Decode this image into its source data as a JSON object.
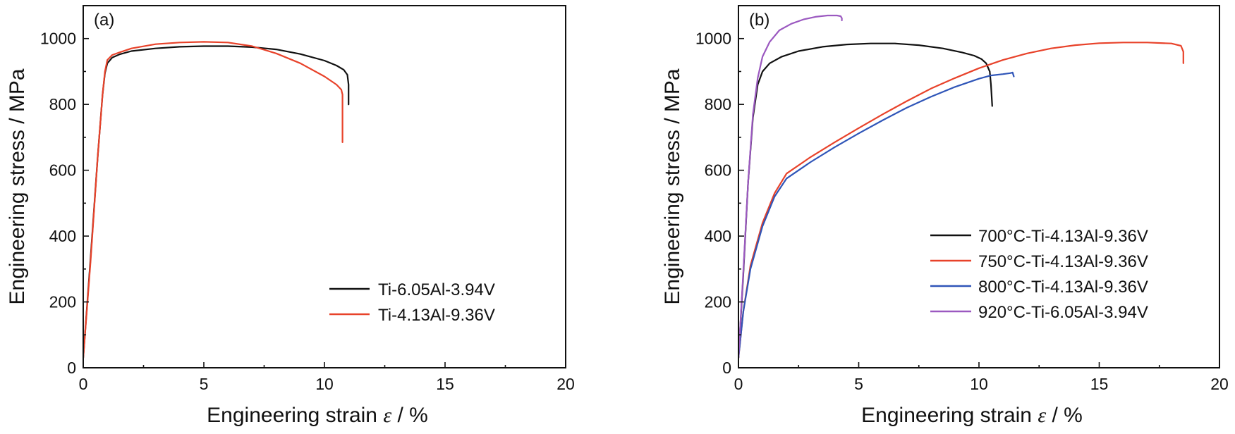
{
  "chart_data": [
    {
      "type": "line",
      "panel_label": "(a)",
      "xlabel_main": "Engineering strain ",
      "xlabel_symbol": "ε",
      "xlabel_unit": " / %",
      "ylabel": "Engineering stress / MPa",
      "xlim": [
        0,
        20
      ],
      "ylim": [
        0,
        1100
      ],
      "xticks": [
        0,
        5,
        10,
        15,
        20
      ],
      "yticks": [
        0,
        200,
        400,
        600,
        800,
        1000
      ],
      "xtick_labels": [
        "0",
        "5",
        "10",
        "15",
        "20"
      ],
      "ytick_labels": [
        "0",
        "200",
        "400",
        "600",
        "800",
        "1000"
      ],
      "legend_position": "lower-right",
      "series": [
        {
          "name": "Ti-6.05Al-3.94V",
          "color": "#111111",
          "x": [
            0,
            0.3,
            0.6,
            0.8,
            0.9,
            1.0,
            1.2,
            1.5,
            2.0,
            3.0,
            4.0,
            5.0,
            6.0,
            7.0,
            8.0,
            9.0,
            10.0,
            10.5,
            10.8,
            10.95,
            11.0,
            11.0
          ],
          "y": [
            30,
            330,
            640,
            830,
            895,
            925,
            942,
            952,
            962,
            970,
            975,
            977,
            977,
            974,
            967,
            953,
            933,
            918,
            905,
            890,
            860,
            800
          ]
        },
        {
          "name": "Ti-4.13Al-9.36V",
          "color": "#e8422a",
          "x": [
            0,
            0.3,
            0.6,
            0.8,
            0.9,
            1.0,
            1.2,
            1.5,
            2.0,
            3.0,
            4.0,
            5.0,
            6.0,
            7.0,
            8.0,
            9.0,
            10.0,
            10.5,
            10.7,
            10.75,
            10.75,
            10.75
          ],
          "y": [
            30,
            320,
            640,
            830,
            900,
            935,
            950,
            958,
            970,
            983,
            988,
            990,
            988,
            977,
            955,
            925,
            885,
            860,
            845,
            830,
            760,
            685
          ]
        }
      ]
    },
    {
      "type": "line",
      "panel_label": "(b)",
      "xlabel_main": "Engineering strain ",
      "xlabel_symbol": "ε",
      "xlabel_unit": " / %",
      "ylabel": "Engineering stress / MPa",
      "xlim": [
        0,
        20
      ],
      "ylim": [
        0,
        1100
      ],
      "xticks": [
        0,
        5,
        10,
        15,
        20
      ],
      "yticks": [
        0,
        200,
        400,
        600,
        800,
        1000
      ],
      "xtick_labels": [
        "0",
        "5",
        "10",
        "15",
        "20"
      ],
      "ytick_labels": [
        "0",
        "200",
        "400",
        "600",
        "800",
        "1000"
      ],
      "legend_position": "lower-right",
      "series": [
        {
          "name": "700°C-Ti-4.13Al-9.36V",
          "color": "#111111",
          "x": [
            0,
            0.2,
            0.4,
            0.6,
            0.8,
            1.0,
            1.3,
            1.8,
            2.5,
            3.5,
            4.5,
            5.5,
            6.5,
            7.5,
            8.5,
            9.3,
            9.8,
            10.1,
            10.3,
            10.45,
            10.5,
            10.55
          ],
          "y": [
            30,
            280,
            560,
            760,
            860,
            900,
            925,
            945,
            962,
            975,
            982,
            985,
            985,
            980,
            970,
            958,
            948,
            938,
            925,
            900,
            860,
            795
          ]
        },
        {
          "name": "750°C-Ti-4.13Al-9.36V",
          "color": "#e8422a",
          "x": [
            0,
            0.2,
            0.5,
            1.0,
            1.5,
            2.0,
            3.0,
            4.0,
            5.0,
            6.0,
            7.0,
            8.0,
            9.0,
            10.0,
            11.0,
            12.0,
            13.0,
            14.0,
            15.0,
            16.0,
            17.0,
            18.0,
            18.4,
            18.5,
            18.5
          ],
          "y": [
            30,
            170,
            310,
            440,
            530,
            590,
            640,
            685,
            728,
            770,
            810,
            848,
            880,
            910,
            935,
            955,
            970,
            980,
            986,
            988,
            988,
            985,
            978,
            960,
            925
          ]
        },
        {
          "name": "800°C-Ti-4.13Al-9.36V",
          "color": "#2f55b8",
          "x": [
            0,
            0.2,
            0.5,
            1.0,
            1.5,
            2.0,
            3.0,
            4.0,
            5.0,
            6.0,
            7.0,
            8.0,
            9.0,
            10.0,
            10.5,
            11.0,
            11.3,
            11.4,
            11.45
          ],
          "y": [
            30,
            170,
            300,
            430,
            520,
            575,
            625,
            670,
            712,
            752,
            790,
            823,
            853,
            878,
            888,
            892,
            895,
            897,
            885
          ]
        },
        {
          "name": "920°C-Ti-6.05Al-3.94V",
          "color": "#9b59c0",
          "x": [
            0,
            0.2,
            0.4,
            0.6,
            0.8,
            1.0,
            1.3,
            1.7,
            2.2,
            2.7,
            3.2,
            3.7,
            4.1,
            4.25,
            4.3,
            4.3
          ],
          "y": [
            30,
            290,
            560,
            770,
            880,
            945,
            990,
            1025,
            1045,
            1058,
            1066,
            1070,
            1070,
            1068,
            1062,
            1055
          ]
        }
      ]
    }
  ]
}
